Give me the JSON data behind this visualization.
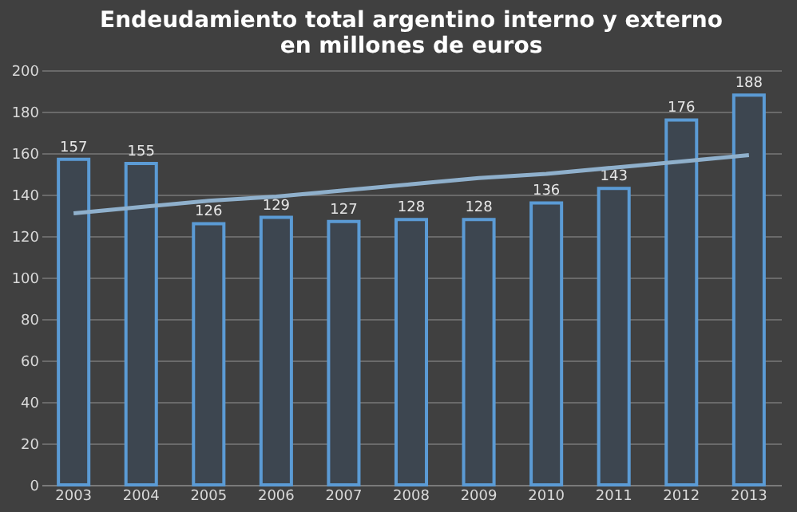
{
  "chart_data": {
    "type": "bar",
    "title": [
      "Endeudamiento total argentino interno y externo",
      "en millones de euros"
    ],
    "categories": [
      "2003",
      "2004",
      "2005",
      "2006",
      "2007",
      "2008",
      "2009",
      "2010",
      "2011",
      "2012",
      "2013"
    ],
    "series": [
      {
        "color": "#5b9bd5",
        "values": [
          157,
          155,
          126,
          129,
          127,
          128,
          128,
          136,
          143,
          176,
          188
        ],
        "value_labels": [
          "157",
          "155",
          "126",
          "129",
          "127",
          "128",
          "128",
          "136",
          "143",
          "176",
          "188"
        ]
      },
      {
        "type": "line",
        "color": "#8fb0cc",
        "values": [
          131,
          134,
          137,
          139,
          142,
          145,
          148,
          150,
          153,
          156,
          159
        ]
      }
    ],
    "ylim": [
      0,
      200
    ],
    "yticks": [
      0,
      20,
      40,
      60,
      80,
      100,
      120,
      140,
      160,
      180,
      200
    ],
    "grid": "y"
  }
}
